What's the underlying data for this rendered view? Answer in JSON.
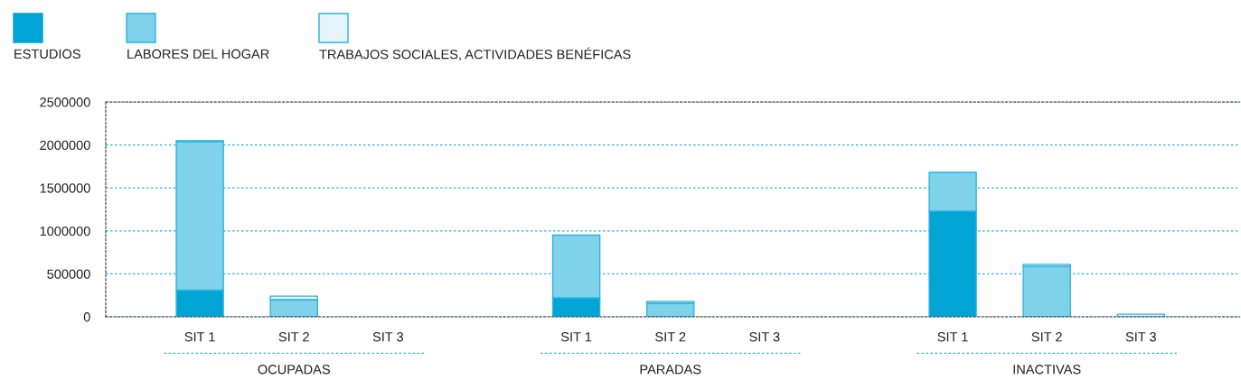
{
  "chart_data": {
    "type": "bar",
    "stacked": true,
    "categories": [
      "SIT 1",
      "SIT 2",
      "SIT 3",
      "SIT 1",
      "SIT 2",
      "SIT 3",
      "SIT 1",
      "SIT 2",
      "SIT 3"
    ],
    "series": [
      {
        "name": "ESTUDIOS",
        "color": "#00a5d6",
        "values": [
          310000,
          null,
          null,
          220000,
          null,
          null,
          1230000,
          null,
          null
        ]
      },
      {
        "name": "LABORES DEL HOGAR",
        "color": "#80d2ea",
        "values": [
          1730000,
          200000,
          null,
          730000,
          160000,
          null,
          450000,
          590000,
          null
        ]
      },
      {
        "name": "TRABAJOS SOCIALES, ACTIVIDADES BENÉFICAS",
        "color": "#e6f5fa",
        "values": [
          10000,
          40000,
          null,
          null,
          20000,
          null,
          null,
          20000,
          30000
        ]
      }
    ],
    "annotations": [
      "OCUPADAS",
      "PARADAS",
      "INACTIVAS"
    ],
    "ylim": [
      0,
      2500000
    ],
    "yticks": [
      0,
      500000,
      1000000,
      1500000,
      2000000,
      2500000
    ],
    "grid": "y",
    "legend": "top left"
  }
}
